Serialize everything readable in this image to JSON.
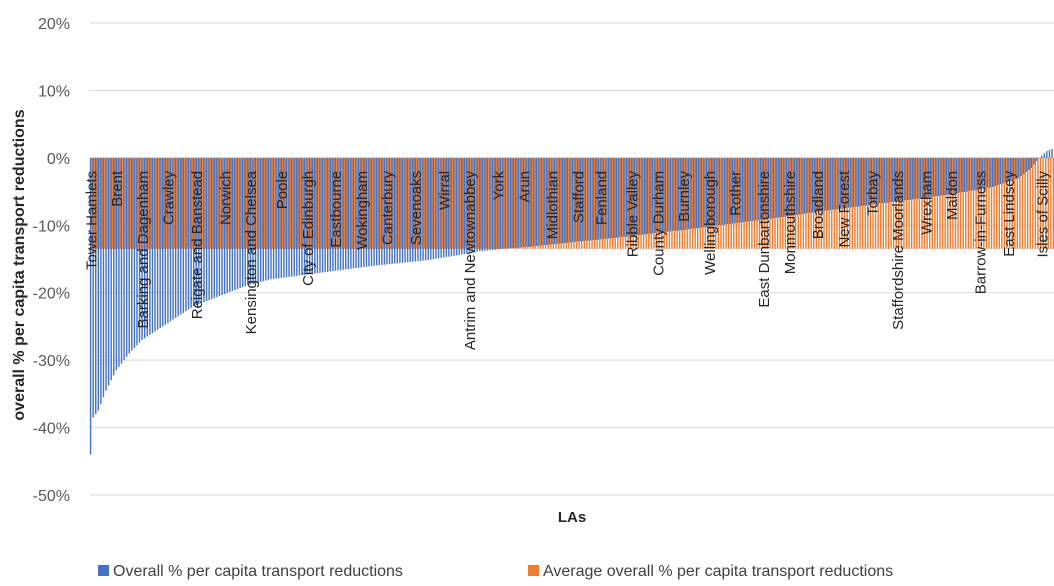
{
  "colors": {
    "overall": "#4472c4",
    "average": "#ed7d31",
    "grid": "#d9d9d9",
    "text": "#595959"
  },
  "chart_data": {
    "type": "bar",
    "title": "",
    "xlabel": "LAs",
    "ylabel": "overall % per capita transport reductions",
    "ylim": [
      -50,
      20
    ],
    "yticks": [
      20,
      10,
      0,
      -10,
      -20,
      -30,
      -40,
      -50
    ],
    "ytick_labels": [
      "20%",
      "10%",
      "0%",
      "-10%",
      "-20%",
      "-30%",
      "-40%",
      "-50%"
    ],
    "grid": "horizontal",
    "legend_position": "bottom",
    "n_categories": 374,
    "visible_category_labels": [
      {
        "index": 0,
        "label": "Tower Hamlets"
      },
      {
        "index": 10,
        "label": "Brent"
      },
      {
        "index": 20,
        "label": "Barking and Dagenham"
      },
      {
        "index": 30,
        "label": "Crawley"
      },
      {
        "index": 41,
        "label": "Reigate and Banstead"
      },
      {
        "index": 52,
        "label": "Norwich"
      },
      {
        "index": 62,
        "label": "Kensington and Chelsea"
      },
      {
        "index": 74,
        "label": "Poole"
      },
      {
        "index": 84,
        "label": "City of Edinburgh"
      },
      {
        "index": 95,
        "label": "Eastbourne"
      },
      {
        "index": 105,
        "label": "Wokingham"
      },
      {
        "index": 115,
        "label": "Canterbury"
      },
      {
        "index": 126,
        "label": "Sevenoaks"
      },
      {
        "index": 137,
        "label": "Wirral"
      },
      {
        "index": 147,
        "label": "Antrim and Newtownabbey"
      },
      {
        "index": 158,
        "label": "York"
      },
      {
        "index": 168,
        "label": "Arun"
      },
      {
        "index": 179,
        "label": "Midlothian"
      },
      {
        "index": 189,
        "label": "Stafford"
      },
      {
        "index": 198,
        "label": "Fenland"
      },
      {
        "index": 210,
        "label": "Ribble Valley"
      },
      {
        "index": 220,
        "label": "County Durham"
      },
      {
        "index": 230,
        "label": "Burnley"
      },
      {
        "index": 240,
        "label": "Wellingborough"
      },
      {
        "index": 250,
        "label": "Rother"
      },
      {
        "index": 261,
        "label": "East Dunbartonshire"
      },
      {
        "index": 271,
        "label": "Monmouthshire"
      },
      {
        "index": 282,
        "label": "Broadland"
      },
      {
        "index": 292,
        "label": "New Forest"
      },
      {
        "index": 303,
        "label": "Torbay"
      },
      {
        "index": 313,
        "label": "Staffordshire Moorlands"
      },
      {
        "index": 324,
        "label": "Wrexham"
      },
      {
        "index": 334,
        "label": "Maldon"
      },
      {
        "index": 345,
        "label": "Barrow-in-Furness"
      },
      {
        "index": 356,
        "label": "East Lindsey"
      },
      {
        "index": 369,
        "label": "Isles of Scilly"
      }
    ],
    "series": [
      {
        "name": "Overall % per capita transport reductions",
        "color": "#4472c4",
        "anchors": [
          [
            0,
            -44
          ],
          [
            1,
            -38.5
          ],
          [
            3,
            -37.5
          ],
          [
            6,
            -34.5
          ],
          [
            10,
            -31.5
          ],
          [
            15,
            -29
          ],
          [
            20,
            -27
          ],
          [
            30,
            -24.5
          ],
          [
            40,
            -22
          ],
          [
            50,
            -20.5
          ],
          [
            60,
            -19
          ],
          [
            70,
            -18
          ],
          [
            80,
            -17.5
          ],
          [
            90,
            -17
          ],
          [
            100,
            -16.5
          ],
          [
            110,
            -16
          ],
          [
            120,
            -15.6
          ],
          [
            130,
            -15.2
          ],
          [
            140,
            -14.6
          ],
          [
            150,
            -13.9
          ],
          [
            160,
            -13.5
          ],
          [
            170,
            -13.2
          ],
          [
            180,
            -12.8
          ],
          [
            190,
            -12.4
          ],
          [
            200,
            -12
          ],
          [
            210,
            -11.6
          ],
          [
            220,
            -11.1
          ],
          [
            230,
            -10.7
          ],
          [
            240,
            -10.2
          ],
          [
            250,
            -9.7
          ],
          [
            260,
            -9.2
          ],
          [
            270,
            -8.7
          ],
          [
            280,
            -8.1
          ],
          [
            290,
            -7.6
          ],
          [
            300,
            -7.1
          ],
          [
            310,
            -6.6
          ],
          [
            320,
            -6.1
          ],
          [
            330,
            -5.6
          ],
          [
            340,
            -5
          ],
          [
            350,
            -4.3
          ],
          [
            360,
            -3
          ],
          [
            365,
            -1.5
          ],
          [
            368,
            0
          ],
          [
            371,
            1
          ],
          [
            373,
            1.3
          ]
        ]
      },
      {
        "name": "Average overall % per capita transport reductions",
        "color": "#ed7d31",
        "constant": -13.5
      }
    ]
  }
}
